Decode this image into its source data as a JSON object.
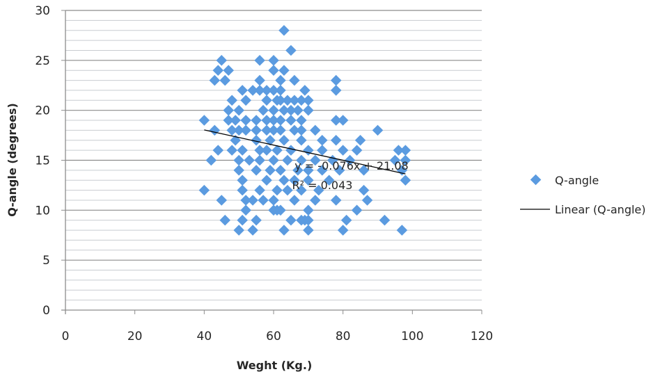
{
  "chart_data": {
    "type": "scatter",
    "title": "",
    "xlabel": "Weght (Kg.)",
    "ylabel": "Q-angle (degrees)",
    "xlim": [
      0,
      120
    ],
    "ylim": [
      0,
      30
    ],
    "xticks": [
      0,
      20,
      40,
      60,
      80,
      100,
      120
    ],
    "yticks": [
      0,
      5,
      10,
      15,
      20,
      25,
      30
    ],
    "grid": "horizontal, minor every 1, major every 5",
    "legend_position": "right",
    "colors": {
      "points": "#5b9be0",
      "trend": "#000000"
    },
    "series": [
      {
        "name": "Q-angle",
        "type": "scatter",
        "points": [
          [
            63,
            28
          ],
          [
            65,
            26
          ],
          [
            45,
            25
          ],
          [
            56,
            25
          ],
          [
            60,
            25
          ],
          [
            44,
            24
          ],
          [
            47,
            24
          ],
          [
            60,
            24
          ],
          [
            63,
            24
          ],
          [
            43,
            23
          ],
          [
            46,
            23
          ],
          [
            56,
            23
          ],
          [
            62,
            23
          ],
          [
            66,
            23
          ],
          [
            78,
            23
          ],
          [
            51,
            22
          ],
          [
            54,
            22
          ],
          [
            56,
            22
          ],
          [
            58,
            22
          ],
          [
            60,
            22
          ],
          [
            62,
            22
          ],
          [
            69,
            22
          ],
          [
            78,
            22
          ],
          [
            48,
            21
          ],
          [
            52,
            21
          ],
          [
            58,
            21
          ],
          [
            61,
            21
          ],
          [
            62,
            21
          ],
          [
            64,
            21
          ],
          [
            66,
            21
          ],
          [
            68,
            21
          ],
          [
            70,
            21
          ],
          [
            47,
            20
          ],
          [
            50,
            20
          ],
          [
            57,
            20
          ],
          [
            60,
            20
          ],
          [
            63,
            20
          ],
          [
            65,
            20
          ],
          [
            67,
            20
          ],
          [
            70,
            20
          ],
          [
            40,
            19
          ],
          [
            47,
            19
          ],
          [
            49,
            19
          ],
          [
            52,
            19
          ],
          [
            55,
            19
          ],
          [
            58,
            19
          ],
          [
            60,
            19
          ],
          [
            62,
            19
          ],
          [
            65,
            19
          ],
          [
            68,
            19
          ],
          [
            78,
            19
          ],
          [
            80,
            19
          ],
          [
            43,
            18
          ],
          [
            48,
            18
          ],
          [
            50,
            18
          ],
          [
            52,
            18
          ],
          [
            55,
            18
          ],
          [
            58,
            18
          ],
          [
            60,
            18
          ],
          [
            62,
            18
          ],
          [
            66,
            18
          ],
          [
            68,
            18
          ],
          [
            72,
            18
          ],
          [
            90,
            18
          ],
          [
            49,
            17
          ],
          [
            55,
            17
          ],
          [
            59,
            17
          ],
          [
            63,
            17
          ],
          [
            68,
            17
          ],
          [
            74,
            17
          ],
          [
            78,
            17
          ],
          [
            85,
            17
          ],
          [
            44,
            16
          ],
          [
            48,
            16
          ],
          [
            51,
            16
          ],
          [
            56,
            16
          ],
          [
            58,
            16
          ],
          [
            61,
            16
          ],
          [
            65,
            16
          ],
          [
            70,
            16
          ],
          [
            74,
            16
          ],
          [
            80,
            16
          ],
          [
            84,
            16
          ],
          [
            96,
            16
          ],
          [
            98,
            16
          ],
          [
            42,
            15
          ],
          [
            50,
            15
          ],
          [
            53,
            15
          ],
          [
            56,
            15
          ],
          [
            60,
            15
          ],
          [
            64,
            15
          ],
          [
            68,
            15
          ],
          [
            72,
            15
          ],
          [
            77,
            15
          ],
          [
            82,
            15
          ],
          [
            95,
            15
          ],
          [
            98,
            15
          ],
          [
            50,
            14
          ],
          [
            55,
            14
          ],
          [
            59,
            14
          ],
          [
            62,
            14
          ],
          [
            67,
            14
          ],
          [
            70,
            14
          ],
          [
            74,
            14
          ],
          [
            79,
            14
          ],
          [
            86,
            14
          ],
          [
            97,
            14
          ],
          [
            51,
            13
          ],
          [
            58,
            13
          ],
          [
            63,
            13
          ],
          [
            66,
            13
          ],
          [
            70,
            13
          ],
          [
            76,
            13
          ],
          [
            98,
            13
          ],
          [
            40,
            12
          ],
          [
            51,
            12
          ],
          [
            56,
            12
          ],
          [
            61,
            12
          ],
          [
            64,
            12
          ],
          [
            68,
            12
          ],
          [
            73,
            12
          ],
          [
            86,
            12
          ],
          [
            45,
            11
          ],
          [
            52,
            11
          ],
          [
            54,
            11
          ],
          [
            57,
            11
          ],
          [
            60,
            11
          ],
          [
            66,
            11
          ],
          [
            72,
            11
          ],
          [
            78,
            11
          ],
          [
            87,
            11
          ],
          [
            52,
            10
          ],
          [
            60,
            10
          ],
          [
            61,
            10
          ],
          [
            62,
            10
          ],
          [
            70,
            10
          ],
          [
            84,
            10
          ],
          [
            46,
            9
          ],
          [
            51,
            9
          ],
          [
            55,
            9
          ],
          [
            65,
            9
          ],
          [
            68,
            9
          ],
          [
            69,
            9
          ],
          [
            70,
            9
          ],
          [
            81,
            9
          ],
          [
            92,
            9
          ],
          [
            50,
            8
          ],
          [
            54,
            8
          ],
          [
            63,
            8
          ],
          [
            70,
            8
          ],
          [
            80,
            8
          ],
          [
            97,
            8
          ]
        ]
      },
      {
        "name": "Linear (Q-angle)",
        "type": "trendline",
        "slope": -0.076,
        "intercept": 21.08,
        "x_range": [
          40,
          98
        ]
      }
    ],
    "annotations": {
      "equation": "y = -0.076x + 21.08",
      "r_squared": "R² = 0.043"
    }
  }
}
